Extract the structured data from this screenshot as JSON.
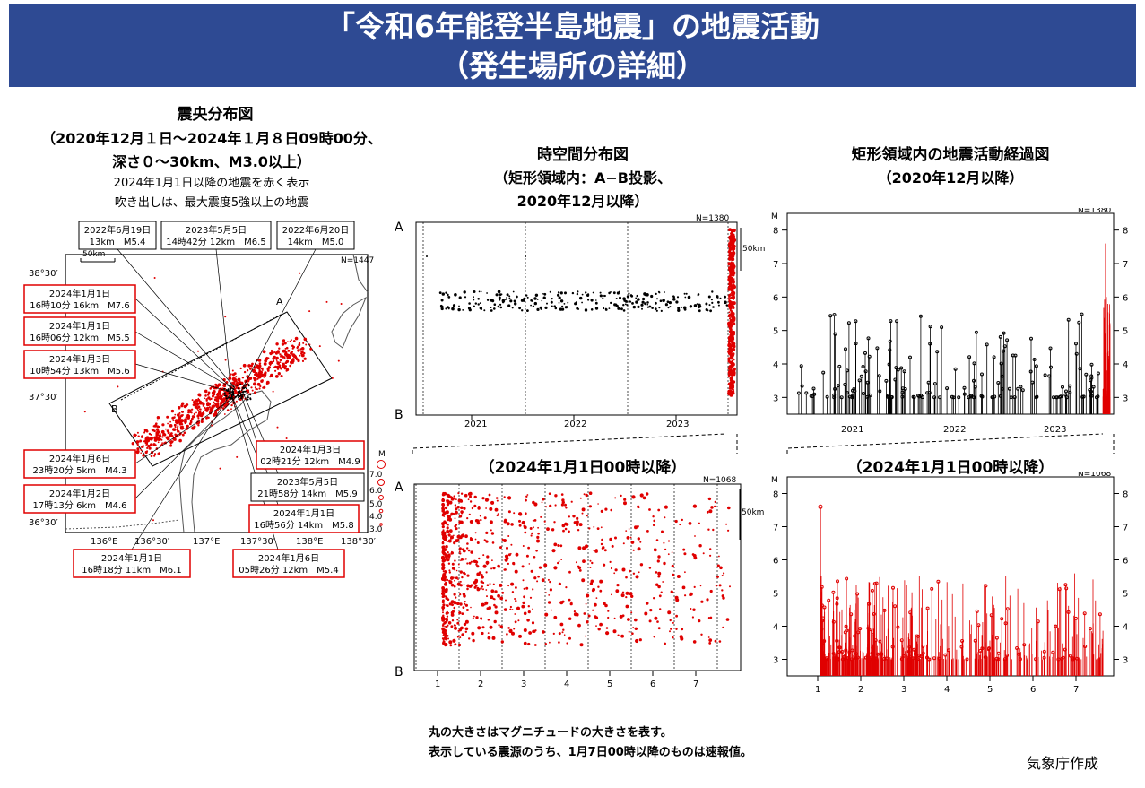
{
  "header": {
    "title": "「令和6年能登半島地震」の地震活動",
    "subtitle": "（発生場所の詳細）"
  },
  "map": {
    "title": "震央分布図",
    "range": "（2020年12月１日～2024年１月８日09時00分、",
    "range2": "深さ０～30km、M3.0以上）",
    "note1": "2024年1月1日以降の地震を赤く表示",
    "note2": "吹き出しは、最大震度5強以上の地震",
    "scale": "50km",
    "n": "N=1447",
    "section_a": "A",
    "section_b": "B",
    "lat_labels": [
      "38°30′",
      "37°30′",
      "36°30′"
    ],
    "lon_labels": [
      "136°E",
      "136°30′",
      "137°E",
      "137°30′",
      "138°E",
      "138°30′"
    ],
    "mag_title": "M",
    "mag_labels": [
      "7.0",
      "6.0",
      "5.0",
      "4.0",
      "3.0"
    ],
    "callouts_black": [
      {
        "date": "2022年6月19日",
        "info": "13km　M5.4"
      },
      {
        "date": "2023年5月5日",
        "info": "14時42分 12km　M6.5"
      },
      {
        "date": "2022年6月20日",
        "info": "14km　M5.0"
      }
    ],
    "callouts_red": [
      {
        "date": "2024年1月1日",
        "info": "16時10分 16km　M7.6"
      },
      {
        "date": "2024年1月1日",
        "info": "16時06分 12km　M5.5"
      },
      {
        "date": "2024年1月3日",
        "info": "10時54分 13km　M5.6"
      },
      {
        "date": "2024年1月6日",
        "info": "23時20分 5km　M4.3"
      },
      {
        "date": "2024年1月2日",
        "info": "17時13分 6km　M4.6"
      },
      {
        "date": "2024年1月3日",
        "info": "02時21分 12km　M4.9"
      },
      {
        "date": "2023年5月5日",
        "info": "21時58分 14km　M5.9"
      },
      {
        "date": "2024年1月1日",
        "info": "16時56分 14km　M5.8"
      },
      {
        "date": "2024年1月1日",
        "info": "16時18分 11km　M6.1"
      },
      {
        "date": "2024年1月6日",
        "info": "05時26分 12km　M5.4"
      }
    ]
  },
  "spacetime": {
    "title": "時空間分布図",
    "sub1": "（矩形領域内：A−B投影、",
    "sub2": "2020年12月以降）",
    "zoom_title": "（2024年1月1日00時以降）",
    "label_a": "A",
    "label_b": "B",
    "scale": "50km",
    "n_top": "N=1380",
    "n_bottom": "N=1068"
  },
  "activity": {
    "title": "矩形領域内の地震活動経過図",
    "sub": "（2020年12月以降）",
    "zoom_title": "（2024年1月1日00時以降）",
    "mag_axis_label": "M",
    "n_top": "N=1380",
    "n_bottom": "N=1068"
  },
  "chart_data": [
    {
      "type": "scatter",
      "title": "時空間分布図",
      "x_axis": "year",
      "x_ticks": [
        "2021",
        "2022",
        "2023"
      ],
      "y_axis": "A−B projection",
      "series": [
        {
          "color": "#000000",
          "values": []
        },
        {
          "color": "#e00000",
          "values": []
        }
      ]
    },
    {
      "type": "bar",
      "title": "矩形領域内の地震活動経過図",
      "x_ticks": [
        "2021",
        "2022",
        "2023"
      ],
      "y_ticks": [
        3,
        4,
        5,
        6,
        7,
        8
      ],
      "ylim": [
        2.5,
        8.5
      ],
      "max_magnitude": 7.6,
      "series": []
    },
    {
      "type": "scatter",
      "title": "（2024年1月1日00時以降）",
      "x_ticks": [
        "1",
        "2",
        "3",
        "4",
        "5",
        "6",
        "7"
      ],
      "y_axis": "A−B projection"
    },
    {
      "type": "bar",
      "title": "（2024年1月1日00時以降）",
      "x_ticks": [
        "1",
        "2",
        "3",
        "4",
        "5",
        "6",
        "7"
      ],
      "y_ticks": [
        3,
        4,
        5,
        6,
        7,
        8
      ],
      "ylim": [
        2.5,
        8.5
      ],
      "max_magnitude": 7.6,
      "series": []
    }
  ],
  "footer": {
    "note1": "丸の大きさはマグニチュードの大きさを表す。",
    "note2": "表示している震源のうち、1月7日00時以降のものは速報値。",
    "credit": "気象庁作成"
  },
  "colors": {
    "banner": "#2e4a93",
    "red": "#e00000"
  }
}
